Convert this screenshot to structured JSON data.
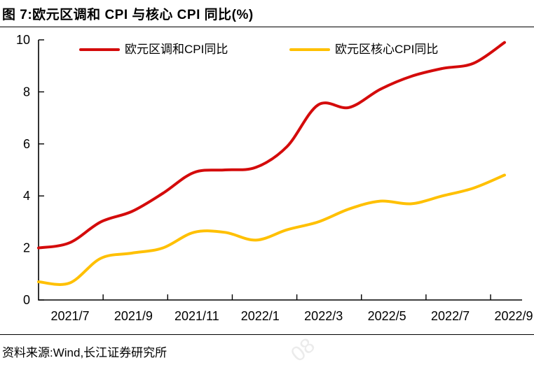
{
  "page": {
    "background": "#ffffff"
  },
  "header": {
    "title": "图 7:欧元区调和 CPI 与核心 CPI 同比(%)"
  },
  "chart_data": {
    "type": "line",
    "title": "欧元区调和 CPI 与核心 CPI 同比(%)",
    "x": [
      "2021/6",
      "2021/7",
      "2021/8",
      "2021/9",
      "2021/10",
      "2021/11",
      "2021/12",
      "2022/1",
      "2022/2",
      "2022/3",
      "2022/4",
      "2022/5",
      "2022/6",
      "2022/7",
      "2022/8",
      "2022/9"
    ],
    "x_tick_labels_shown": [
      "2021/7",
      "2021/9",
      "2021/11",
      "2022/1",
      "2022/3",
      "2022/5",
      "2022/7",
      "2022/9"
    ],
    "series": [
      {
        "name": "欧元区调和CPI同比",
        "color": "#d40b0b",
        "values": [
          2.0,
          2.2,
          3.0,
          3.4,
          4.1,
          4.9,
          5.0,
          5.1,
          5.9,
          7.5,
          7.4,
          8.1,
          8.6,
          8.9,
          9.1,
          9.9
        ]
      },
      {
        "name": "欧元区核心CPI同比",
        "color": "#ffc000",
        "values": [
          0.7,
          0.65,
          1.6,
          1.8,
          2.0,
          2.6,
          2.6,
          2.3,
          2.7,
          3.0,
          3.5,
          3.8,
          3.7,
          4.0,
          4.3,
          4.8
        ]
      }
    ],
    "ylabel": "",
    "xlabel": "",
    "ylim": [
      0,
      10
    ],
    "yticks": [
      0,
      2,
      4,
      6,
      8,
      10
    ],
    "grid": false,
    "legend_position": "top",
    "axis_color": "#000000"
  },
  "footer": {
    "source": "资料来源:Wind,长江证券研究所",
    "watermark": "08"
  }
}
